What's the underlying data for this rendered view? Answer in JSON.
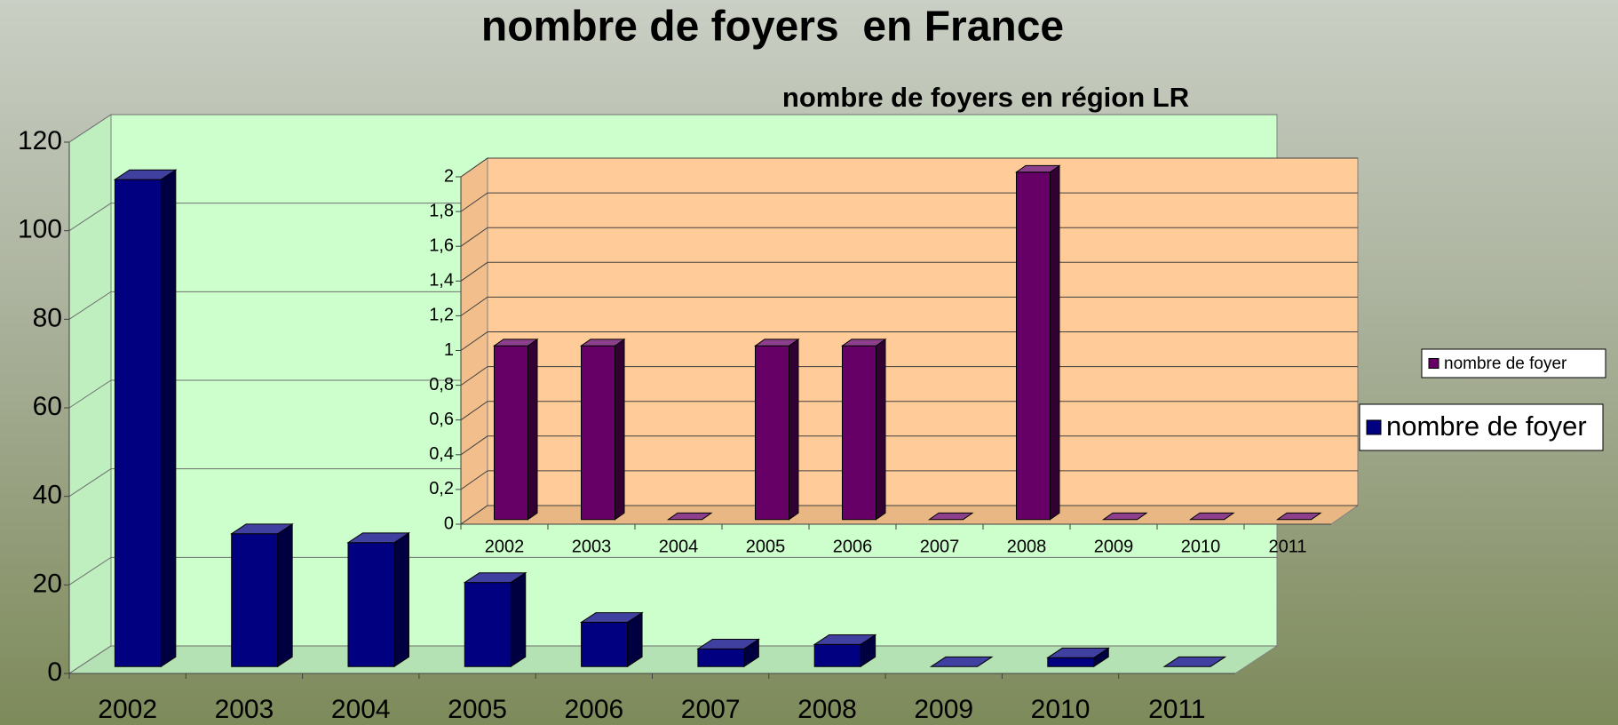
{
  "chart_data": [
    {
      "type": "bar",
      "title": "nombre de foyers  en France",
      "categories": [
        "2002",
        "2003",
        "2004",
        "2005",
        "2006",
        "2007",
        "2008",
        "2009",
        "2010",
        "2011"
      ],
      "series": [
        {
          "name": "nombre de foyer",
          "color": "#000080",
          "values": [
            110,
            30,
            28,
            19,
            10,
            4,
            5,
            0,
            2,
            0
          ]
        }
      ],
      "ylim": [
        0,
        120
      ],
      "yticks": [
        0,
        20,
        40,
        60,
        80,
        100,
        120
      ],
      "grid": true,
      "legend": "right"
    },
    {
      "type": "bar",
      "title": "nombre de foyers en région LR",
      "categories": [
        "2002",
        "2003",
        "2004",
        "2005",
        "2006",
        "2007",
        "2008",
        "2009",
        "2010",
        "2011"
      ],
      "series": [
        {
          "name": "nombre de foyer",
          "color": "#660066",
          "values": [
            1,
            1,
            0,
            1,
            1,
            0,
            2,
            0,
            0,
            0
          ]
        }
      ],
      "ylim": [
        0,
        2
      ],
      "yticks": [
        0,
        {
          "value": 0.2,
          "label": "0,2"
        },
        {
          "value": 0.4,
          "label": "0,4"
        },
        {
          "value": 0.6,
          "label": "0,6"
        },
        {
          "value": 0.8,
          "label": "0,8"
        },
        1,
        {
          "value": 1.2,
          "label": "1,2"
        },
        {
          "value": 1.4,
          "label": "1,4"
        },
        {
          "value": 1.6,
          "label": "1,6"
        },
        {
          "value": 1.8,
          "label": "1,8"
        },
        2
      ],
      "grid": true,
      "legend": "right"
    }
  ]
}
